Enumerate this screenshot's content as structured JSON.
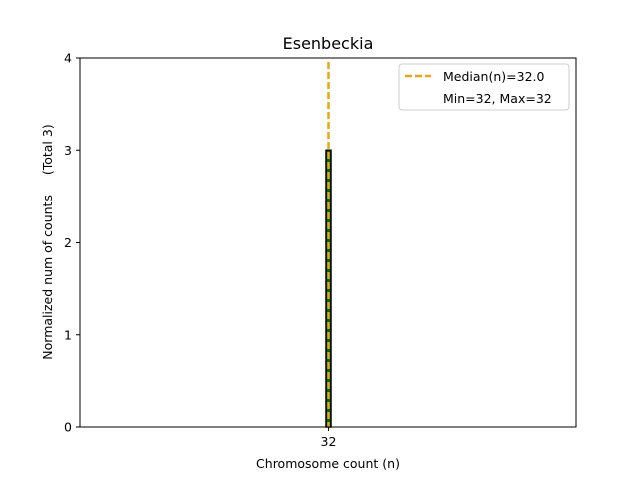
{
  "chart_data": {
    "type": "bar",
    "title": "Esenbeckia",
    "xlabel": "Chromosome count (n)",
    "ylabel": "Normalized num of counts     (Total 3)",
    "categories": [
      "32"
    ],
    "values": [
      3
    ],
    "x_ticks": [
      "32"
    ],
    "y_ticks": [
      0,
      1,
      2,
      3,
      4
    ],
    "ylim": [
      0,
      4
    ],
    "grid": false,
    "bar_fill_color": "#006400",
    "bar_edge_color": "#000000",
    "median_line": {
      "x": 32,
      "label": "Median(n)=32.0",
      "color": "#e6a817",
      "style": "dashed"
    },
    "legend": {
      "placement": "top-right",
      "entries": [
        "Median(n)=32.0",
        "Min=32, Max=32"
      ]
    }
  }
}
